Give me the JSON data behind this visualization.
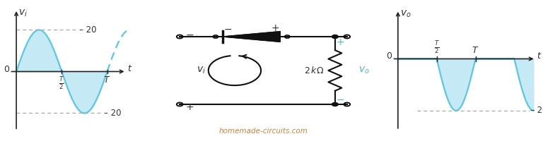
{
  "bg_color": "#ffffff",
  "sine_color": "#5bc8e8",
  "sine_fill_color": "#c5e9f5",
  "axis_color": "#222222",
  "dashed_color": "#aaaaaa",
  "dashed_blue_color": "#5bc8e8",
  "label_color": "#333333",
  "cyan_label_color": "#4db8d8",
  "orange_label_color": "#d4813a",
  "circuit_color": "#111111",
  "amplitude": 20,
  "watermark": "homemade-circuits.com"
}
